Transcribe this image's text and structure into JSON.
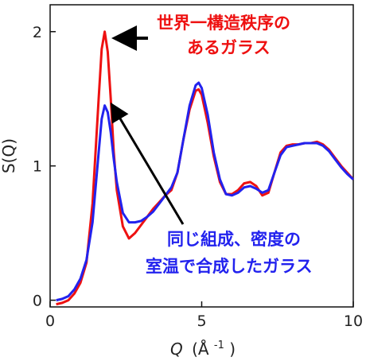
{
  "chart_data": {
    "type": "line",
    "title": "",
    "xlabel": "Q",
    "xlabel_unit": "(Å",
    "xlabel_unit_sup": "-1",
    "xlabel_unit_close": ")",
    "ylabel": "S(Q)",
    "xlim": [
      0,
      10
    ],
    "ylim": [
      -0.05,
      2.2
    ],
    "x_ticks": [
      0,
      5,
      10
    ],
    "y_ticks": [
      0,
      1,
      2
    ],
    "grid": false,
    "series": [
      {
        "color": "#ee1111",
        "x": [
          0.2,
          0.4,
          0.6,
          0.8,
          1.0,
          1.2,
          1.4,
          1.6,
          1.7,
          1.8,
          1.9,
          2.0,
          2.1,
          2.2,
          2.4,
          2.6,
          2.8,
          3.0,
          3.2,
          3.4,
          3.6,
          3.8,
          4.0,
          4.2,
          4.4,
          4.6,
          4.8,
          4.9,
          5.0,
          5.2,
          5.4,
          5.6,
          5.8,
          6.0,
          6.2,
          6.4,
          6.6,
          6.8,
          7.0,
          7.2,
          7.4,
          7.6,
          7.8,
          8.0,
          8.2,
          8.4,
          8.6,
          8.8,
          9.0,
          9.2,
          9.4,
          9.6,
          9.8,
          10.0
        ],
        "y": [
          -0.03,
          -0.02,
          0.0,
          0.05,
          0.13,
          0.28,
          0.72,
          1.5,
          1.87,
          2.0,
          1.85,
          1.5,
          1.1,
          0.82,
          0.55,
          0.46,
          0.5,
          0.56,
          0.62,
          0.68,
          0.73,
          0.78,
          0.82,
          0.95,
          1.2,
          1.42,
          1.56,
          1.57,
          1.53,
          1.32,
          1.07,
          0.88,
          0.79,
          0.79,
          0.82,
          0.87,
          0.88,
          0.85,
          0.78,
          0.8,
          0.95,
          1.1,
          1.15,
          1.16,
          1.16,
          1.17,
          1.17,
          1.18,
          1.16,
          1.12,
          1.06,
          1.0,
          0.95,
          0.9
        ]
      },
      {
        "color": "#2222ee",
        "x": [
          0.2,
          0.4,
          0.6,
          0.8,
          1.0,
          1.2,
          1.4,
          1.6,
          1.7,
          1.8,
          1.9,
          2.0,
          2.1,
          2.2,
          2.4,
          2.6,
          2.8,
          3.0,
          3.2,
          3.4,
          3.6,
          3.8,
          4.0,
          4.2,
          4.4,
          4.6,
          4.8,
          4.9,
          5.0,
          5.2,
          5.4,
          5.6,
          5.8,
          6.0,
          6.2,
          6.4,
          6.6,
          6.8,
          7.0,
          7.2,
          7.4,
          7.6,
          7.8,
          8.0,
          8.2,
          8.4,
          8.6,
          8.8,
          9.0,
          9.2,
          9.4,
          9.6,
          9.8,
          10.0
        ],
        "y": [
          0.0,
          0.01,
          0.03,
          0.08,
          0.16,
          0.3,
          0.58,
          1.1,
          1.35,
          1.45,
          1.4,
          1.25,
          1.05,
          0.88,
          0.65,
          0.58,
          0.58,
          0.59,
          0.62,
          0.66,
          0.72,
          0.78,
          0.84,
          0.95,
          1.2,
          1.45,
          1.6,
          1.62,
          1.58,
          1.38,
          1.1,
          0.9,
          0.79,
          0.78,
          0.8,
          0.84,
          0.85,
          0.83,
          0.8,
          0.82,
          0.95,
          1.08,
          1.14,
          1.15,
          1.16,
          1.17,
          1.17,
          1.17,
          1.15,
          1.11,
          1.05,
          0.99,
          0.94,
          0.9
        ]
      }
    ],
    "annotations": [
      {
        "text_line1": "世界一構造秩序の",
        "text_line2": "あるガラス",
        "color": "#ee1111"
      },
      {
        "text_line1": "同じ組成、密度の",
        "text_line2": "室温で合成したガラス",
        "color": "#2222ee"
      }
    ]
  }
}
